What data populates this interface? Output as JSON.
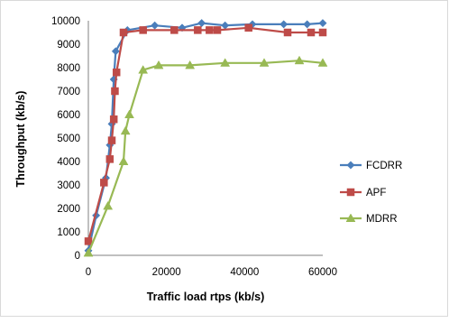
{
  "chart_data": {
    "type": "line",
    "xlabel": "Traffic load rtps (kb/s)",
    "ylabel": "Throughput (kb/s)",
    "xlim": [
      0,
      60000
    ],
    "ylim": [
      0,
      10000
    ],
    "xticks": [
      "0",
      "20000",
      "40000",
      "60000"
    ],
    "yticks": [
      "0",
      "1000",
      "2000",
      "3000",
      "4000",
      "5000",
      "6000",
      "7000",
      "8000",
      "9000",
      "10000"
    ],
    "grid": false,
    "legend_position": "right",
    "series": [
      {
        "name": "FCDRR",
        "color": "#4a7ebb",
        "marker": "diamond",
        "x": [
          0,
          2000,
          4500,
          5500,
          6000,
          6500,
          7000,
          10000,
          17000,
          24000,
          29000,
          35000,
          42000,
          50000,
          56000,
          60000
        ],
        "y": [
          200,
          1700,
          3300,
          4700,
          5600,
          7500,
          8700,
          9600,
          9800,
          9700,
          9900,
          9800,
          9850,
          9850,
          9850,
          9900
        ]
      },
      {
        "name": "APF",
        "color": "#be4b48",
        "marker": "square",
        "x": [
          0,
          4000,
          5500,
          6000,
          6500,
          6800,
          7200,
          9000,
          14000,
          22000,
          28000,
          31000,
          33000,
          41000,
          51000,
          57000,
          60000
        ],
        "y": [
          600,
          3100,
          4100,
          4900,
          5800,
          7000,
          7800,
          9500,
          9600,
          9600,
          9600,
          9600,
          9600,
          9700,
          9500,
          9500,
          9500
        ]
      },
      {
        "name": "MDRR",
        "color": "#98b954",
        "marker": "triangle",
        "x": [
          0,
          5000,
          9000,
          9500,
          10500,
          14000,
          18000,
          26000,
          35000,
          45000,
          54000,
          60000
        ],
        "y": [
          100,
          2100,
          4000,
          5300,
          6000,
          7900,
          8100,
          8100,
          8200,
          8200,
          8300,
          8200
        ]
      }
    ]
  }
}
